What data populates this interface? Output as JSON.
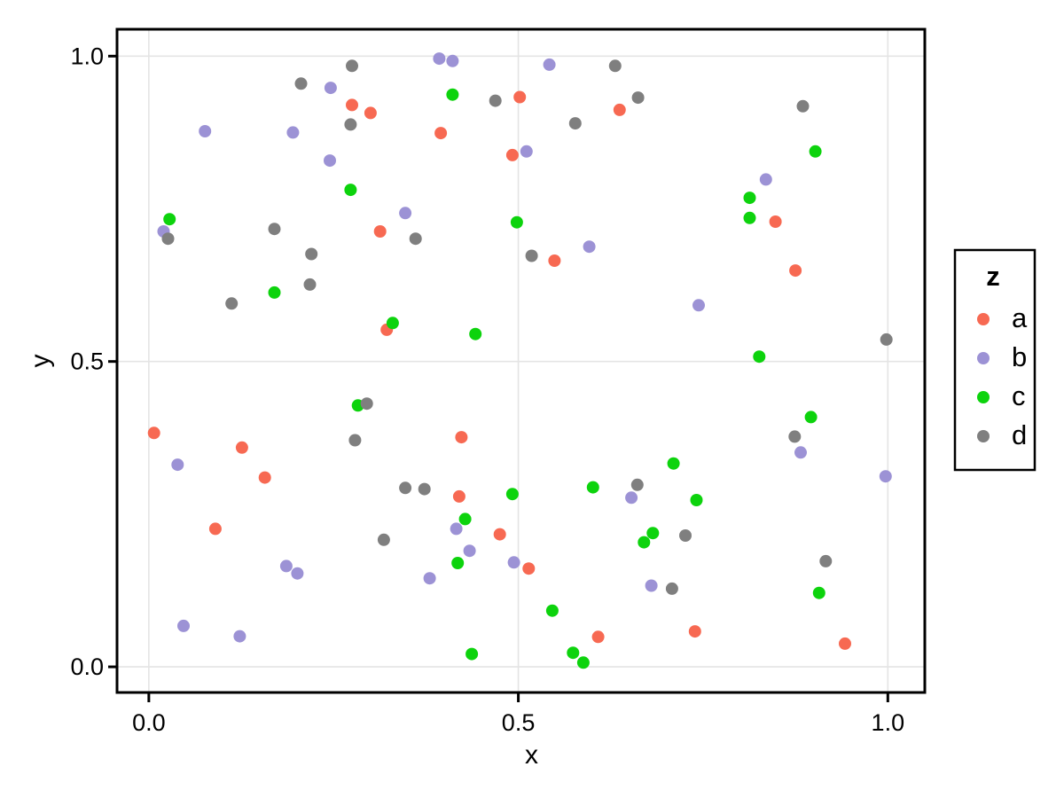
{
  "chart_data": {
    "type": "scatter",
    "title": "",
    "xlabel": "x",
    "ylabel": "y",
    "xlim": [
      -0.043,
      1.05
    ],
    "ylim": [
      -0.042,
      1.044
    ],
    "grid": true,
    "background": "#FFFFFF",
    "grid_color": "#E4E4E4",
    "frame_color": "#000000",
    "marker_radius_px": 7,
    "x_ticks": {
      "values": [
        0.0,
        0.5,
        1.0
      ],
      "labels": [
        "0.0",
        "0.5",
        "1.0"
      ]
    },
    "y_ticks": {
      "values": [
        0.0,
        0.5,
        1.0
      ],
      "labels": [
        "0.0",
        "0.5",
        "1.0"
      ]
    },
    "legend": {
      "title": "z",
      "position": "right",
      "entries": [
        "a",
        "b",
        "c",
        "d"
      ]
    },
    "series": [
      {
        "name": "a",
        "color": "#F76952",
        "points": [
          [
            0.275,
            0.92
          ],
          [
            0.3,
            0.907
          ],
          [
            0.313,
            0.713
          ],
          [
            0.395,
            0.874
          ],
          [
            0.492,
            0.838
          ],
          [
            0.502,
            0.933
          ],
          [
            0.637,
            0.912
          ],
          [
            0.848,
            0.729
          ],
          [
            0.322,
            0.552
          ],
          [
            0.549,
            0.665
          ],
          [
            0.875,
            0.649
          ],
          [
            0.007,
            0.383
          ],
          [
            0.126,
            0.359
          ],
          [
            0.423,
            0.376
          ],
          [
            0.157,
            0.31
          ],
          [
            0.09,
            0.226
          ],
          [
            0.42,
            0.279
          ],
          [
            0.475,
            0.217
          ],
          [
            0.514,
            0.161
          ],
          [
            0.608,
            0.049
          ],
          [
            0.739,
            0.058
          ],
          [
            0.942,
            0.038
          ]
        ]
      },
      {
        "name": "b",
        "color": "#9C92D5",
        "points": [
          [
            0.246,
            0.948
          ],
          [
            0.076,
            0.877
          ],
          [
            0.195,
            0.875
          ],
          [
            0.245,
            0.829
          ],
          [
            0.02,
            0.713
          ],
          [
            0.393,
            0.996
          ],
          [
            0.411,
            0.992
          ],
          [
            0.542,
            0.986
          ],
          [
            0.511,
            0.844
          ],
          [
            0.347,
            0.743
          ],
          [
            0.596,
            0.688
          ],
          [
            0.835,
            0.798
          ],
          [
            0.744,
            0.592
          ],
          [
            0.882,
            0.351
          ],
          [
            0.039,
            0.331
          ],
          [
            0.997,
            0.312
          ],
          [
            0.653,
            0.277
          ],
          [
            0.416,
            0.226
          ],
          [
            0.434,
            0.19
          ],
          [
            0.494,
            0.171
          ],
          [
            0.38,
            0.145
          ],
          [
            0.68,
            0.133
          ],
          [
            0.186,
            0.165
          ],
          [
            0.201,
            0.153
          ],
          [
            0.047,
            0.067
          ],
          [
            0.123,
            0.05
          ]
        ]
      },
      {
        "name": "c",
        "color": "#0DD30D",
        "points": [
          [
            0.273,
            0.781
          ],
          [
            0.028,
            0.733
          ],
          [
            0.411,
            0.937
          ],
          [
            0.498,
            0.728
          ],
          [
            0.902,
            0.844
          ],
          [
            0.813,
            0.768
          ],
          [
            0.813,
            0.735
          ],
          [
            0.17,
            0.613
          ],
          [
            0.33,
            0.563
          ],
          [
            0.442,
            0.545
          ],
          [
            0.283,
            0.428
          ],
          [
            0.826,
            0.508
          ],
          [
            0.896,
            0.409
          ],
          [
            0.71,
            0.333
          ],
          [
            0.601,
            0.294
          ],
          [
            0.492,
            0.283
          ],
          [
            0.741,
            0.273
          ],
          [
            0.428,
            0.242
          ],
          [
            0.682,
            0.219
          ],
          [
            0.67,
            0.204
          ],
          [
            0.418,
            0.17
          ],
          [
            0.546,
            0.092
          ],
          [
            0.907,
            0.121
          ],
          [
            0.437,
            0.021
          ],
          [
            0.574,
            0.023
          ],
          [
            0.588,
            0.007
          ]
        ]
      },
      {
        "name": "d",
        "color": "#7F7F7F",
        "points": [
          [
            0.275,
            0.984
          ],
          [
            0.206,
            0.955
          ],
          [
            0.273,
            0.888
          ],
          [
            0.631,
            0.984
          ],
          [
            0.469,
            0.927
          ],
          [
            0.662,
            0.932
          ],
          [
            0.577,
            0.89
          ],
          [
            0.885,
            0.918
          ],
          [
            0.026,
            0.701
          ],
          [
            0.17,
            0.717
          ],
          [
            0.361,
            0.701
          ],
          [
            0.22,
            0.676
          ],
          [
            0.518,
            0.673
          ],
          [
            0.218,
            0.626
          ],
          [
            0.112,
            0.595
          ],
          [
            0.998,
            0.536
          ],
          [
            0.295,
            0.431
          ],
          [
            0.279,
            0.371
          ],
          [
            0.874,
            0.377
          ],
          [
            0.318,
            0.208
          ],
          [
            0.347,
            0.293
          ],
          [
            0.373,
            0.291
          ],
          [
            0.661,
            0.298
          ],
          [
            0.708,
            0.128
          ],
          [
            0.726,
            0.215
          ],
          [
            0.916,
            0.173
          ]
        ]
      }
    ]
  }
}
